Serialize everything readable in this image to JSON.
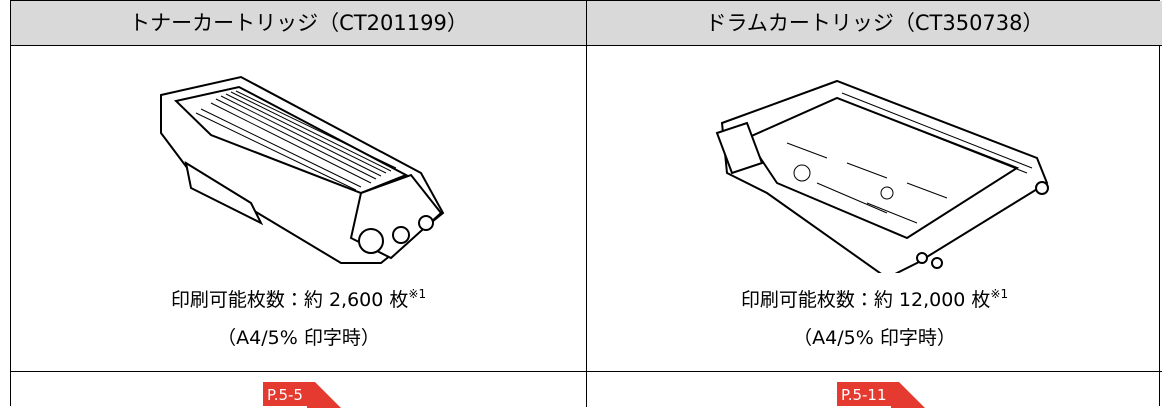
{
  "table": {
    "columns": [
      {
        "header": "トナーカートリッジ（CT201199）",
        "capacity": "印刷可能枚数：約 2,600 枚",
        "note": "※1",
        "condition": "（A4/5% 印字時）",
        "link": "P.5-5"
      },
      {
        "header": "ドラムカートリッジ（CT350738）",
        "capacity": "印刷可能枚数：約 12,000 枚",
        "note": "※1",
        "condition": "（A4/5% 印字時）",
        "link": "P.5-11"
      }
    ]
  }
}
